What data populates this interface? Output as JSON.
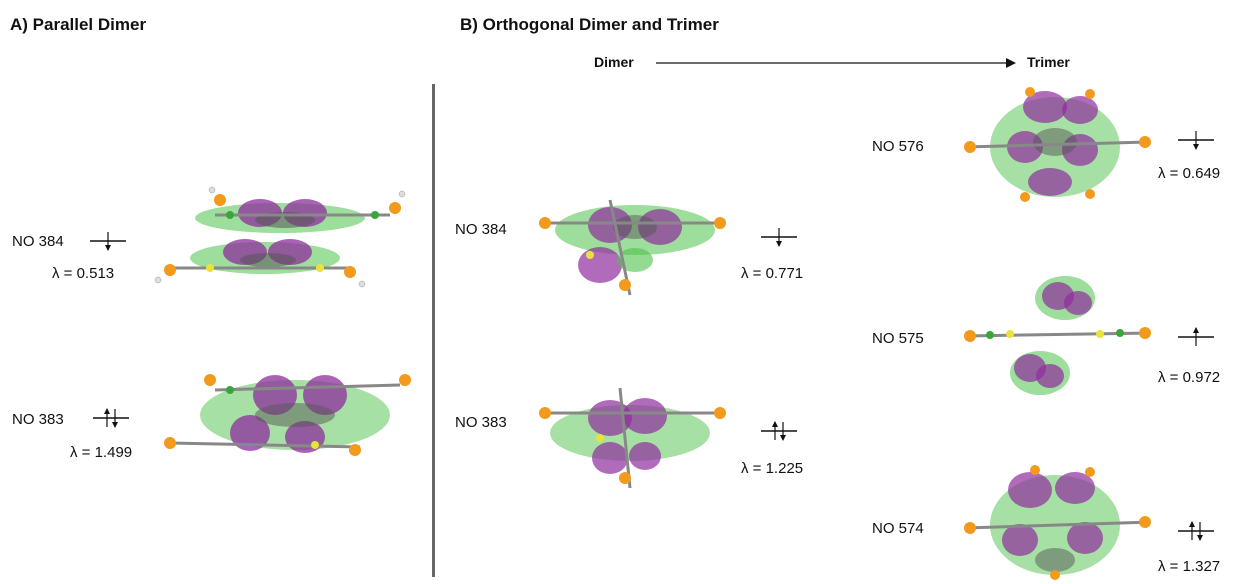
{
  "panels": {
    "a_title": "A) Parallel Dimer",
    "b_title": "B) Orthogonal Dimer and Trimer"
  },
  "progression": {
    "from": "Dimer",
    "to": "Trimer"
  },
  "orbitals": {
    "parallel_no384": {
      "label": "NO 384",
      "lambda": "λ = 0.513",
      "occupancy": "down"
    },
    "parallel_no383": {
      "label": "NO 383",
      "lambda": "λ = 1.499",
      "occupancy": "up-down"
    },
    "orthogonal_no384": {
      "label": "NO 384",
      "lambda": "λ = 0.771",
      "occupancy": "down"
    },
    "orthogonal_no383": {
      "label": "NO 383",
      "lambda": "λ = 1.225",
      "occupancy": "up-down"
    },
    "trimer_no576": {
      "label": "NO 576",
      "lambda": "λ = 0.649",
      "occupancy": "down"
    },
    "trimer_no575": {
      "label": "NO 575",
      "lambda": "λ = 0.972",
      "occupancy": "up"
    },
    "trimer_no574": {
      "label": "NO 574",
      "lambda": "λ = 1.327",
      "occupancy": "up-down"
    }
  },
  "colors": {
    "lobe_positive": "#8e2e9e",
    "lobe_negative": "#4fc24a",
    "silicon": "#f29a1c",
    "sulfur": "#e8e23a",
    "carbon_chain": "#3aa63a",
    "hydrogen": "#e8e8e8",
    "core": "#555555",
    "divider": "#666666"
  }
}
